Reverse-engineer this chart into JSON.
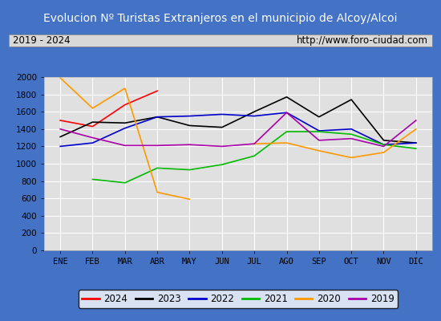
{
  "title": "Evolucion Nº Turistas Extranjeros en el municipio de Alcoy/Alcoi",
  "subtitle_left": "2019 - 2024",
  "subtitle_right": "http://www.foro-ciudad.com",
  "months": [
    "ENE",
    "FEB",
    "MAR",
    "ABR",
    "MAY",
    "JUN",
    "JUL",
    "AGO",
    "SEP",
    "OCT",
    "NOV",
    "DIC"
  ],
  "series": {
    "2024": [
      1500,
      1430,
      1680,
      1840,
      null,
      null,
      null,
      null,
      null,
      null,
      null,
      null
    ],
    "2023": [
      1310,
      1480,
      1470,
      1540,
      1440,
      1420,
      1600,
      1770,
      1540,
      1740,
      1270,
      1240
    ],
    "2022": [
      1200,
      1240,
      1410,
      1540,
      1550,
      1570,
      1550,
      1590,
      1380,
      1400,
      1220,
      1240
    ],
    "2021": [
      null,
      820,
      780,
      950,
      930,
      990,
      1090,
      1370,
      1370,
      1340,
      1220,
      1175
    ],
    "2020": [
      1990,
      1640,
      1870,
      670,
      590,
      null,
      1230,
      1240,
      1150,
      1070,
      1130,
      1400
    ],
    "2019": [
      1400,
      1300,
      1210,
      1210,
      1220,
      1200,
      1230,
      1590,
      1270,
      1290,
      1200,
      1500
    ]
  },
  "colors": {
    "2024": "#ff0000",
    "2023": "#000000",
    "2022": "#0000cc",
    "2021": "#00bb00",
    "2020": "#ff9900",
    "2019": "#aa00aa"
  },
  "ylim": [
    0,
    2000
  ],
  "yticks": [
    0,
    200,
    400,
    600,
    800,
    1000,
    1200,
    1400,
    1600,
    1800,
    2000
  ],
  "title_bg_color": "#4472c4",
  "title_text_color": "#ffffff",
  "plot_bg_color": "#e0e0e0",
  "outer_bg_color": "#4472c4",
  "subtitle_bg_color": "#d8d8d8",
  "grid_color": "#ffffff",
  "legend_order": [
    "2024",
    "2023",
    "2022",
    "2021",
    "2020",
    "2019"
  ]
}
